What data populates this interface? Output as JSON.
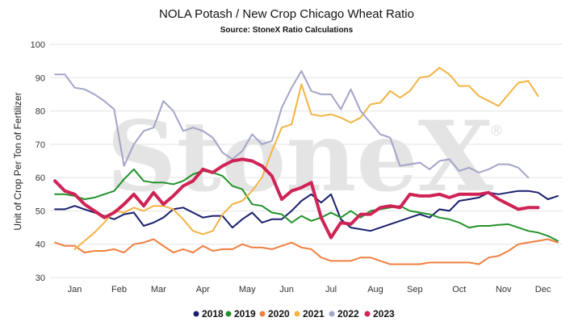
{
  "watermark": "StoneX",
  "watermark_mark": "®",
  "chart_data": {
    "type": "line",
    "title": "NOLA Potash / New Crop Chicago Wheat Ratio",
    "subtitle": "Source: StoneX Ratio Calculations",
    "ylabel": "Unit of Crop Per Ton of Fertilizer",
    "xlabel": "",
    "ylim": [
      30,
      100
    ],
    "xlim": [
      0.5,
      52.5
    ],
    "yticks": [
      "30",
      "40",
      "50",
      "60",
      "70",
      "80",
      "90",
      "100"
    ],
    "xticks": [
      {
        "label": "Jan",
        "x": 3
      },
      {
        "label": "Feb",
        "x": 7.5
      },
      {
        "label": "Mar",
        "x": 11.5
      },
      {
        "label": "Apr",
        "x": 16
      },
      {
        "label": "May",
        "x": 20.5
      },
      {
        "label": "Jun",
        "x": 24.5
      },
      {
        "label": "Jul",
        "x": 29
      },
      {
        "label": "Aug",
        "x": 33.5
      },
      {
        "label": "Sep",
        "x": 37.5
      },
      {
        "label": "Oct",
        "x": 42
      },
      {
        "label": "Nov",
        "x": 46.5
      },
      {
        "label": "Dec",
        "x": 50.5
      }
    ],
    "grid": true,
    "legend_position": "bottom",
    "series": [
      {
        "name": "2018",
        "color": "#1a1f6e",
        "x": [
          1,
          2,
          3,
          4,
          5,
          6,
          7,
          8,
          9,
          10,
          11,
          12,
          13,
          14,
          15,
          16,
          17,
          18,
          19,
          20,
          21,
          22,
          23,
          24,
          25,
          26,
          27,
          28,
          29,
          30,
          31,
          32,
          33,
          34,
          35,
          36,
          37,
          38,
          39,
          40,
          41,
          42,
          43,
          44,
          45,
          46,
          47,
          48,
          49,
          50,
          51,
          52
        ],
        "y": [
          50.5,
          50.5,
          51.5,
          50.5,
          49.5,
          48.5,
          47.5,
          49,
          49.5,
          45.5,
          46.5,
          48,
          50.5,
          51,
          49.5,
          48,
          48.5,
          48.5,
          45,
          47.5,
          49.5,
          46.5,
          47.5,
          47.5,
          50,
          53,
          55,
          52.5,
          55,
          47.5,
          45,
          44.5,
          44,
          45,
          46,
          47,
          48,
          49,
          48,
          50.5,
          50,
          53,
          53.5,
          54,
          55.5,
          55,
          55.5,
          56,
          56,
          55.5,
          53.5,
          54.5
        ]
      },
      {
        "name": "2019",
        "color": "#22922b",
        "x": [
          1,
          2,
          3,
          4,
          5,
          6,
          7,
          8,
          9,
          10,
          11,
          12,
          13,
          14,
          15,
          16,
          17,
          18,
          19,
          20,
          21,
          22,
          23,
          24,
          25,
          26,
          27,
          28,
          29,
          30,
          31,
          32,
          33,
          34,
          35,
          36,
          37,
          38,
          39,
          40,
          41,
          42,
          43,
          44,
          45,
          46,
          47,
          48,
          49,
          50,
          51,
          52
        ],
        "y": [
          55,
          55,
          54.5,
          53.5,
          54,
          55,
          56,
          59.5,
          62.5,
          59,
          58.5,
          58.5,
          58,
          59,
          61,
          62,
          61.5,
          60.5,
          57.5,
          56.5,
          52,
          51.5,
          49.5,
          49,
          46.5,
          48.5,
          47,
          48,
          49.5,
          48,
          50,
          48,
          50,
          50.5,
          51,
          51.5,
          50,
          49.5,
          49,
          48,
          47.5,
          46.5,
          45,
          45.5,
          45.5,
          45.8,
          46,
          45,
          44,
          43.5,
          42.5,
          41
        ]
      },
      {
        "name": "2020",
        "color": "#f07f3f",
        "x": [
          1,
          2,
          3,
          4,
          5,
          6,
          7,
          8,
          9,
          10,
          11,
          12,
          13,
          14,
          15,
          16,
          17,
          18,
          19,
          20,
          21,
          22,
          23,
          24,
          25,
          26,
          27,
          28,
          29,
          30,
          31,
          32,
          33,
          34,
          35,
          36,
          37,
          38,
          39,
          40,
          41,
          42,
          43,
          44,
          45,
          46,
          47,
          48,
          49,
          50,
          51,
          52
        ],
        "y": [
          40.5,
          39.5,
          39.5,
          37.5,
          38,
          38,
          38.5,
          37.5,
          40,
          40.5,
          41.5,
          39.5,
          37.5,
          38.5,
          37.5,
          39.5,
          38,
          38.5,
          38.5,
          40,
          39,
          39,
          38.5,
          39.5,
          40.5,
          39,
          38.5,
          36,
          35,
          35,
          35,
          36,
          36,
          35,
          34,
          34,
          34,
          34,
          34.5,
          34.5,
          34.5,
          34.5,
          34.5,
          34,
          36,
          36.5,
          38,
          40,
          40.5,
          41,
          41.5,
          40.5
        ]
      },
      {
        "name": "2021",
        "color": "#f4b342",
        "x": [
          1,
          2,
          3,
          4,
          5,
          6,
          7,
          8,
          9,
          10,
          11,
          12,
          13,
          14,
          15,
          16,
          17,
          18,
          19,
          20,
          21,
          22,
          23,
          24,
          25,
          26,
          27,
          28,
          29,
          30,
          31,
          32,
          33,
          34,
          35,
          36,
          37,
          38,
          39,
          40,
          41,
          42,
          43,
          44,
          45,
          46,
          47,
          48,
          49,
          50,
          51,
          52
        ],
        "y": [
          null,
          null,
          38.5,
          41,
          43.5,
          46.5,
          50,
          49.5,
          51,
          50,
          51.5,
          51.5,
          50.5,
          47.5,
          44,
          43,
          44,
          49,
          52,
          53,
          56,
          60,
          68,
          75,
          76,
          88,
          79,
          78.5,
          79,
          78,
          76.5,
          78,
          82,
          82.5,
          86,
          84,
          86,
          90,
          90.5,
          93,
          91,
          87.5,
          87.5,
          84.5,
          83,
          81.5,
          85,
          88.5,
          89,
          84.5,
          null,
          null
        ]
      },
      {
        "name": "2022",
        "color": "#a3a4c8",
        "x": [
          1,
          2,
          3,
          4,
          5,
          6,
          7,
          8,
          9,
          10,
          11,
          12,
          13,
          14,
          15,
          16,
          17,
          18,
          19,
          20,
          21,
          22,
          23,
          24,
          25,
          26,
          27,
          28,
          29,
          30,
          31,
          32,
          33,
          34,
          35,
          36,
          37,
          38,
          39,
          40,
          41,
          42,
          43,
          44,
          45,
          46,
          47,
          48,
          49,
          50,
          51,
          52
        ],
        "y": [
          91,
          91,
          87,
          86.5,
          85,
          83,
          80.5,
          63.5,
          70,
          74,
          75,
          83,
          80,
          74,
          75,
          74,
          72,
          67.5,
          65.5,
          68,
          73,
          70,
          71,
          81,
          87,
          92,
          86,
          85,
          85,
          80.5,
          86.5,
          80,
          76.5,
          73,
          72,
          63.5,
          64,
          64.5,
          62.5,
          65,
          65.5,
          62,
          63,
          61.5,
          62.5,
          64,
          64,
          63,
          60,
          null,
          null,
          null
        ]
      },
      {
        "name": "2023",
        "color": "#cf2356",
        "x": [
          1,
          2,
          3,
          4,
          5,
          6,
          7,
          8,
          9,
          10,
          11,
          12,
          13,
          14,
          15,
          16,
          17,
          18,
          19,
          20,
          21,
          22,
          23,
          24,
          25,
          26,
          27,
          28,
          29,
          30,
          31,
          32,
          33,
          34,
          35,
          36,
          37,
          38,
          39,
          40,
          41,
          42,
          43,
          44,
          45,
          46,
          47,
          48,
          49,
          50,
          51,
          52
        ],
        "y": [
          59,
          56,
          55,
          52,
          50,
          48,
          49.5,
          52,
          55,
          51.5,
          55.5,
          52,
          54.5,
          57.5,
          59,
          62.5,
          61.5,
          63.5,
          65,
          65.5,
          65,
          63.5,
          60.5,
          53.5,
          56,
          57,
          58.5,
          48,
          42,
          46.5,
          46,
          49,
          49,
          51,
          51.5,
          51,
          55,
          54.5,
          54.5,
          55,
          54,
          55,
          55,
          55,
          55.5,
          53.5,
          52,
          50.5,
          51,
          51,
          null,
          null
        ]
      }
    ],
    "legend": [
      {
        "name": "2018",
        "color": "#1a1f6e"
      },
      {
        "name": "2019",
        "color": "#22922b"
      },
      {
        "name": "2020",
        "color": "#f07f3f"
      },
      {
        "name": "2021",
        "color": "#f4b342"
      },
      {
        "name": "2022",
        "color": "#a3a4c8"
      },
      {
        "name": "2023",
        "color": "#cf2356"
      }
    ]
  }
}
